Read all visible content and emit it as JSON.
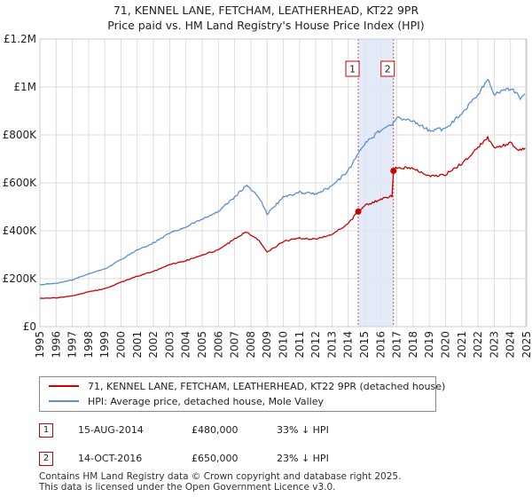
{
  "chart_data": {
    "type": "line",
    "title": "71, KENNEL LANE, FETCHAM, LEATHERHEAD, KT22 9PR",
    "subtitle": "Price paid vs. HM Land Registry's House Price Index (HPI)",
    "xlabel": "",
    "ylabel": "",
    "xlim": [
      1995,
      2025
    ],
    "ylim": [
      0,
      1200000
    ],
    "y_ticks": [
      {
        "value": 0,
        "label": "£0"
      },
      {
        "value": 200000,
        "label": "£200K"
      },
      {
        "value": 400000,
        "label": "£400K"
      },
      {
        "value": 600000,
        "label": "£600K"
      },
      {
        "value": 800000,
        "label": "£800K"
      },
      {
        "value": 1000000,
        "label": "£1M"
      },
      {
        "value": 1200000,
        "label": "£1.2M"
      }
    ],
    "x_ticks": [
      "1995",
      "1996",
      "1997",
      "1998",
      "1999",
      "2000",
      "2001",
      "2002",
      "2003",
      "2004",
      "2005",
      "2006",
      "2007",
      "2008",
      "2009",
      "2010",
      "2011",
      "2012",
      "2013",
      "2014",
      "2015",
      "2016",
      "2017",
      "2018",
      "2019",
      "2020",
      "2021",
      "2022",
      "2023",
      "2024",
      "2025"
    ],
    "grid": true,
    "series": [
      {
        "name": "71, KENNEL LANE, FETCHAM, LEATHERHEAD, KT22 9PR (detached house)",
        "color": "#cc0000",
        "x": [
          1995,
          1996,
          1997,
          1998,
          1999,
          2000,
          2001,
          2002,
          2003,
          2004,
          2005,
          2006,
          2007,
          2007.75,
          2008.5,
          2009.0,
          2010,
          2011,
          2012,
          2013,
          2014.0,
          2014.62,
          2015,
          2016,
          2016.7,
          2016.79,
          2017,
          2018,
          2019,
          2020,
          2021,
          2022,
          2022.6,
          2023,
          2024,
          2024.6,
          2024.9
        ],
        "values": [
          118000,
          120000,
          128000,
          145000,
          158000,
          185000,
          210000,
          230000,
          260000,
          275000,
          300000,
          320000,
          365000,
          395000,
          360000,
          310000,
          355000,
          370000,
          365000,
          385000,
          430000,
          480000,
          505000,
          530000,
          545000,
          650000,
          665000,
          660000,
          630000,
          635000,
          680000,
          750000,
          790000,
          745000,
          765000,
          735000,
          745000
        ]
      },
      {
        "name": "HPI: Average price, detached house, Mole Valley",
        "color": "#5b8fd4",
        "x": [
          1995,
          1996,
          1997,
          1998,
          1999,
          2000,
          2001,
          2002,
          2003,
          2004,
          2005,
          2006,
          2007,
          2007.75,
          2008.5,
          2009.0,
          2010,
          2011,
          2012,
          2013,
          2014.0,
          2014.62,
          2015,
          2016,
          2016.79,
          2017,
          2018,
          2019,
          2020,
          2021,
          2022,
          2022.6,
          2023,
          2024,
          2024.6,
          2024.9
        ],
        "values": [
          175000,
          180000,
          195000,
          220000,
          240000,
          280000,
          320000,
          350000,
          390000,
          415000,
          450000,
          480000,
          540000,
          590000,
          540000,
          470000,
          540000,
          560000,
          555000,
          585000,
          650000,
          720000,
          760000,
          820000,
          850000,
          870000,
          860000,
          820000,
          825000,
          890000,
          970000,
          1030000,
          970000,
          995000,
          955000,
          970000
        ]
      }
    ],
    "annotations": [
      {
        "label": "1",
        "x": 2014.62,
        "value": 480000
      },
      {
        "label": "2",
        "x": 2016.79,
        "value": 650000
      }
    ]
  },
  "legend": {
    "property_label": "71, KENNEL LANE, FETCHAM, LEATHERHEAD, KT22 9PR (detached house)",
    "hpi_label": "HPI: Average price, detached house, Mole Valley",
    "property_color": "#cc0000",
    "hpi_color": "#5b8fd4"
  },
  "sales": [
    {
      "num": "1",
      "date": "15-AUG-2014",
      "price": "£480,000",
      "hpi": "33% ↓ HPI"
    },
    {
      "num": "2",
      "date": "14-OCT-2016",
      "price": "£650,000",
      "hpi": "23% ↓ HPI"
    }
  ],
  "footer": {
    "line1": "Contains HM Land Registry data © Crown copyright and database right 2025.",
    "line2": "This data is licensed under the Open Government Licence v3.0."
  },
  "colors": {
    "highlight_fill": "#dde6f6",
    "grid": "#dddddd",
    "annotation_line": "#cc0000"
  }
}
